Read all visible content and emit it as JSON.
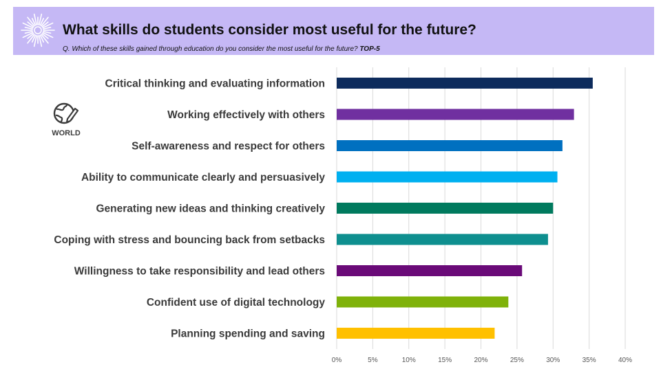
{
  "header": {
    "title": "What skills do students consider most useful for the future?",
    "subtitle": "Q. Which of these skills gained through education do you consider the most useful for the future?",
    "subtitle_tag": "TOP-5",
    "background_color": "#c5b8f5"
  },
  "badge": {
    "label": "WORLD",
    "icon": "globe-pencil-icon"
  },
  "chart_data": {
    "type": "bar",
    "orientation": "horizontal",
    "categories": [
      "Critical thinking and evaluating information",
      "Working effectively with others",
      "Self-awareness and respect for others",
      "Ability to communicate clearly and persuasively",
      "Generating new ideas and thinking creatively",
      "Coping with stress and bouncing back from setbacks",
      "Willingness to take responsibility and lead others",
      "Confident use of digital technology",
      "Planning spending and saving"
    ],
    "values": [
      35.5,
      32.9,
      31.3,
      30.6,
      30.0,
      29.3,
      25.7,
      23.8,
      21.9
    ],
    "colors": [
      "#0d2b5c",
      "#7030a0",
      "#0070c0",
      "#00b0f0",
      "#007a5e",
      "#0e8f8f",
      "#6a0a78",
      "#7fb20a",
      "#ffc000"
    ],
    "xlim": [
      0,
      40
    ],
    "xticks": [
      "0%",
      "5%",
      "10%",
      "15%",
      "20%",
      "25%",
      "30%",
      "35%",
      "40%"
    ],
    "tick_step": 5,
    "grid": "vertical"
  }
}
